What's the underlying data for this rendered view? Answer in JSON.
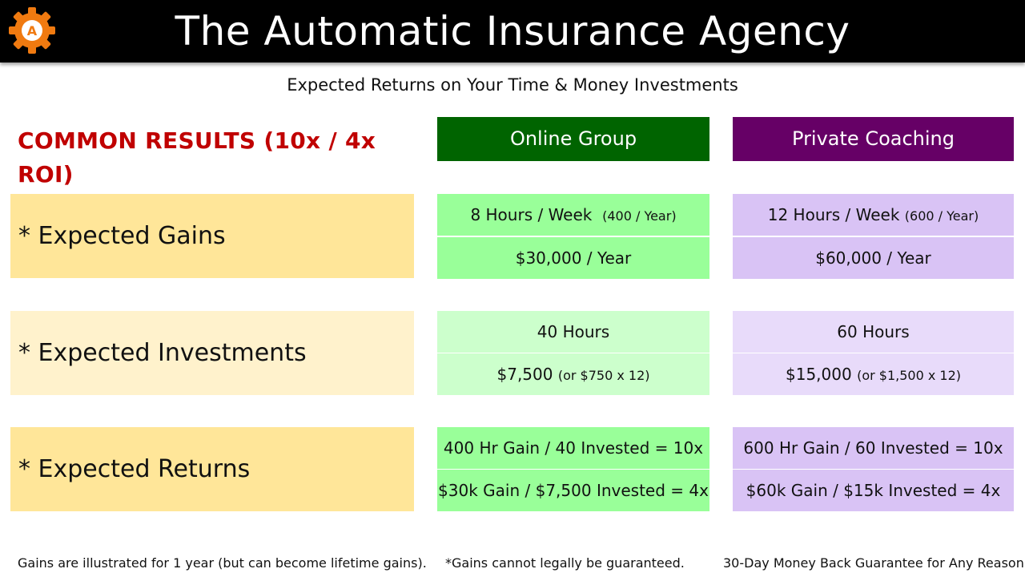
{
  "header": {
    "logo_letter": "A",
    "title": "The Automatic Insurance Agency"
  },
  "subtitle": "Expected Returns on Your Time & Money Investments",
  "common_results": "COMMON RESULTS (10x / 4x ROI)",
  "columns": {
    "online": "Online Group",
    "private": "Private Coaching"
  },
  "rows": [
    {
      "label": "* Expected Gains",
      "online": [
        {
          "main": "8 Hours / Week",
          "note": "(400 / Year)"
        },
        {
          "main": "$30,000 / Year",
          "note": ""
        }
      ],
      "private": [
        {
          "main": "12 Hours / Week",
          "note": "(600 / Year)"
        },
        {
          "main": "$60,000 / Year",
          "note": ""
        }
      ]
    },
    {
      "label": "* Expected Investments",
      "online": [
        {
          "main": "40 Hours",
          "note": ""
        },
        {
          "main": "$7,500",
          "note": "(or $750 x 12)"
        }
      ],
      "private": [
        {
          "main": "60 Hours",
          "note": ""
        },
        {
          "main": "$15,000",
          "note": "(or $1,500 x 12)"
        }
      ]
    },
    {
      "label": "* Expected Returns",
      "online": [
        {
          "main": "400 Hr Gain / 40 Invested = 10x",
          "note": ""
        },
        {
          "main": "$30k Gain / $7,500 Invested = 4x",
          "note": ""
        }
      ],
      "private": [
        {
          "main": "600 Hr Gain / 60 Invested = 10x",
          "note": ""
        },
        {
          "main": "$60k Gain / $15k Invested = 4x",
          "note": ""
        }
      ]
    }
  ],
  "footer": {
    "left": "Gains are illustrated for 1 year (but can become lifetime gains).",
    "center": "*Gains cannot legally be guaranteed.",
    "right": "30-Day Money Back Guarantee for Any Reason"
  },
  "colors": {
    "header_bg": "#000000",
    "logo_orange": "#f07a10",
    "common_red": "#c00000",
    "online_header": "#006400",
    "private_header": "#660066",
    "gains_label": "#ffe699",
    "invest_label": "#fff2cc",
    "returns_label": "#ffe699",
    "online_strong": "#99ff99",
    "online_light": "#ccffcc",
    "private_strong": "#d9c3f5",
    "private_light": "#e8dbfa"
  }
}
